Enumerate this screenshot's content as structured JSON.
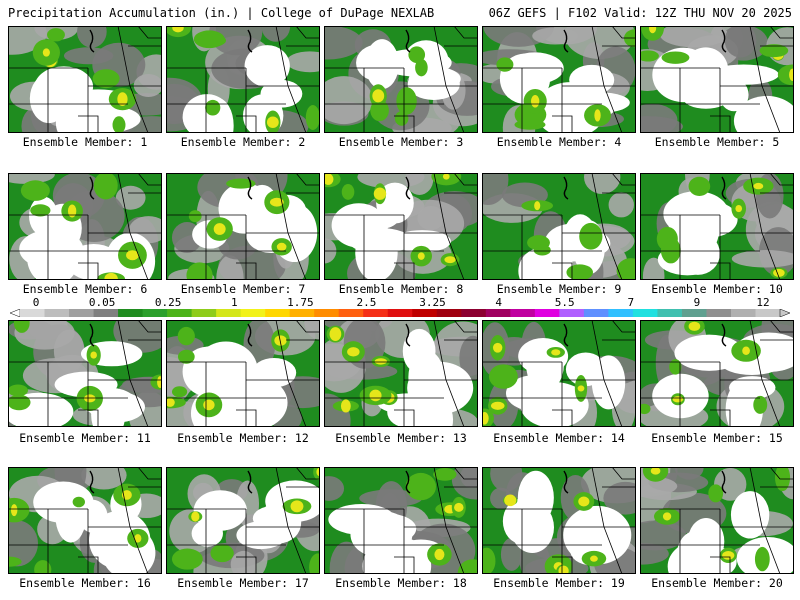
{
  "header": {
    "left": "Precipitation Accumulation (in.) | College of DuPage NEXLAB",
    "right": "06Z GEFS | F102 Valid: 12Z THU NOV 20 2025"
  },
  "caption_prefix": "Ensemble Member:",
  "members": [
    {
      "label": "Ensemble Member: 1"
    },
    {
      "label": "Ensemble Member: 2"
    },
    {
      "label": "Ensemble Member: 3"
    },
    {
      "label": "Ensemble Member: 4"
    },
    {
      "label": "Ensemble Member: 5"
    },
    {
      "label": "Ensemble Member: 6"
    },
    {
      "label": "Ensemble Member: 7"
    },
    {
      "label": "Ensemble Member: 8"
    },
    {
      "label": "Ensemble Member: 9"
    },
    {
      "label": "Ensemble Member: 10"
    },
    {
      "label": "Ensemble Member: 11"
    },
    {
      "label": "Ensemble Member: 12"
    },
    {
      "label": "Ensemble Member: 13"
    },
    {
      "label": "Ensemble Member: 14"
    },
    {
      "label": "Ensemble Member: 15"
    },
    {
      "label": "Ensemble Member: 16"
    },
    {
      "label": "Ensemble Member: 17"
    },
    {
      "label": "Ensemble Member: 18"
    },
    {
      "label": "Ensemble Member: 19"
    },
    {
      "label": "Ensemble Member: 20"
    }
  ],
  "colorbar": {
    "labels": [
      "0",
      "0.05",
      "0.25",
      "1",
      "1.75",
      "2.5",
      "3.25",
      "4",
      "5.5",
      "7",
      "9",
      "12"
    ],
    "colors": [
      "#d9d9d9",
      "#bdbdbd",
      "#a0a0a0",
      "#808080",
      "#1f8c1f",
      "#2ca02c",
      "#4db31a",
      "#8fcc1a",
      "#d4e619",
      "#f2f21a",
      "#ffd700",
      "#ffb000",
      "#ff8c00",
      "#ff6010",
      "#f53018",
      "#e01010",
      "#c00000",
      "#a00010",
      "#8c0030",
      "#a00060",
      "#c000a0",
      "#e000e0",
      "#b060ff",
      "#6090ff",
      "#30c0ff",
      "#20e0e0",
      "#40c0b0",
      "#60a090",
      "#909090",
      "#b0b0b0",
      "#c8c8c8"
    ]
  },
  "colors": {
    "green": "#1f8c1f",
    "light_green": "#4db31a",
    "yellow": "#e6e61a",
    "gray": "#a8a8a8",
    "dark_gray": "#7a7a7a"
  }
}
